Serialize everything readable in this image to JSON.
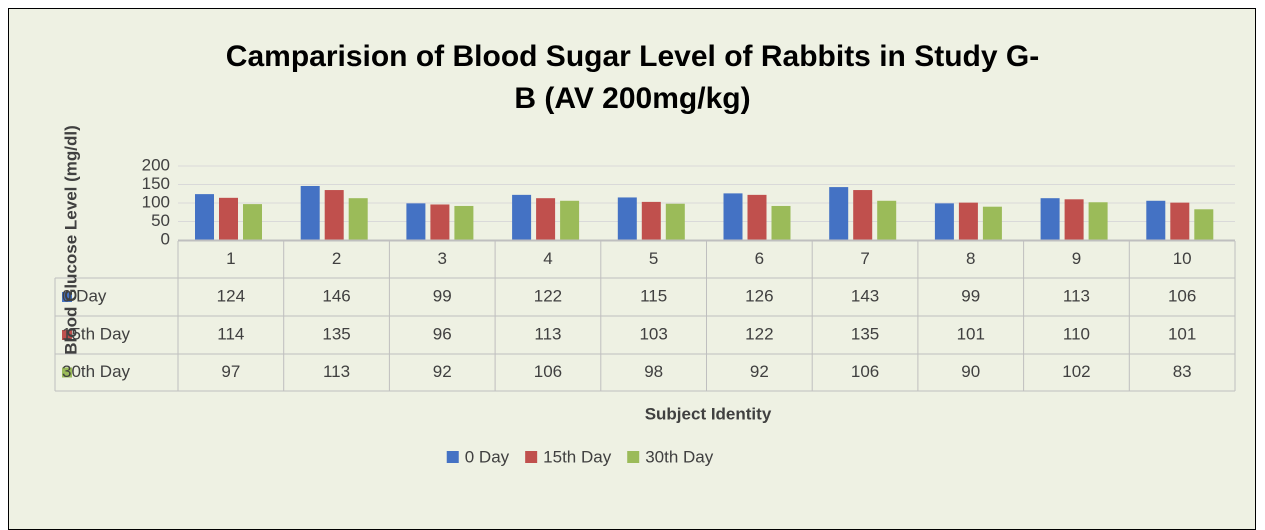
{
  "chart_data": {
    "type": "bar",
    "title": "Camparision of Blood Sugar Level of Rabbits in Study G-\nB (AV 200mg/kg)",
    "y_label": "Blood Glucose Level (mg/dl)",
    "x_label": "Subject Identity",
    "categories": [
      "1",
      "2",
      "3",
      "4",
      "5",
      "6",
      "7",
      "8",
      "9",
      "10"
    ],
    "series": [
      {
        "name": "0 Day",
        "color": "#4472c4",
        "values": [
          124,
          146,
          99,
          122,
          115,
          126,
          143,
          99,
          113,
          106
        ]
      },
      {
        "name": "15th Day",
        "color": "#c0504d",
        "values": [
          114,
          135,
          96,
          113,
          103,
          122,
          135,
          101,
          110,
          101
        ]
      },
      {
        "name": "30th Day",
        "color": "#9bbb59",
        "values": [
          97,
          113,
          92,
          106,
          98,
          92,
          106,
          90,
          102,
          83
        ]
      }
    ],
    "ylim": [
      0,
      200
    ],
    "yticks": [
      0,
      50,
      100,
      150,
      200
    ],
    "grid": true,
    "legend": "bottom",
    "data_table": true
  }
}
